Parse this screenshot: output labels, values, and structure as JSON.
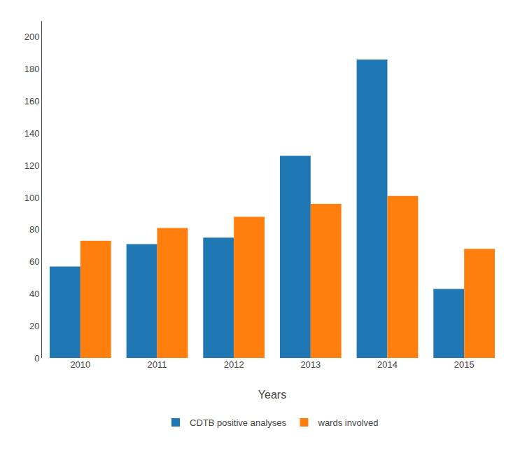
{
  "chart_data": {
    "type": "bar",
    "xlabel": "Years",
    "categories": [
      "2010",
      "2011",
      "2012",
      "2013",
      "2014",
      "2015"
    ],
    "series": [
      {
        "name": "CDTB positive analyses",
        "values": [
          57,
          71,
          75,
          126,
          186,
          43
        ]
      },
      {
        "name": "wards involved",
        "values": [
          73,
          81,
          88,
          96,
          101,
          68
        ]
      }
    ],
    "ylim": [
      0,
      210
    ],
    "yticks": [
      0,
      20,
      40,
      60,
      80,
      100,
      120,
      140,
      160,
      180,
      200
    ],
    "grid": false,
    "legend": "bottom"
  }
}
